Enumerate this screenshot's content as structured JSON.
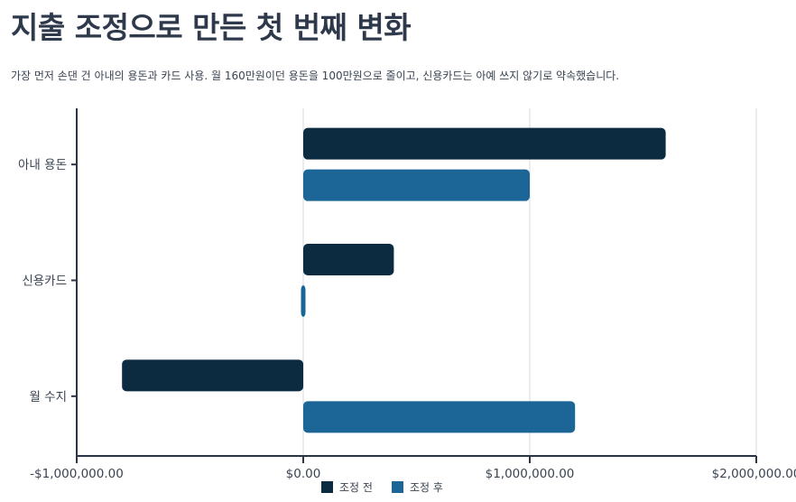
{
  "page": {
    "title": "지출 조정으로 만든 첫 번째 변화",
    "subtitle": "가장 먼저 손댄 건 아내의 용돈과 카드 사용. 월 160만원이던 용돈을 100만원으로 줄이고, 신용카드는 아예 쓰지 않기로 약속했습니다."
  },
  "colors": {
    "before": "#0d2b40",
    "after": "#1c6697",
    "axis": "#2b3544",
    "grid": "#d9d9d9"
  },
  "chart_data": {
    "type": "bar",
    "orientation": "horizontal",
    "categories": [
      "아내 용돈",
      "신용카드",
      "월 수지"
    ],
    "series": [
      {
        "name": "조정 전",
        "values": [
          1600000,
          400000,
          -800000
        ]
      },
      {
        "name": "조정 후",
        "values": [
          1000000,
          10000,
          1200000
        ]
      }
    ],
    "xlim": [
      -1000000,
      2000000
    ],
    "xticks": [
      -1000000,
      0,
      1000000,
      2000000
    ],
    "xtick_labels": [
      "-$1,000,000.00",
      "$0.00",
      "$1,000,000.00",
      "$2,000,000.00"
    ],
    "grid": true,
    "legend": "bottom"
  }
}
